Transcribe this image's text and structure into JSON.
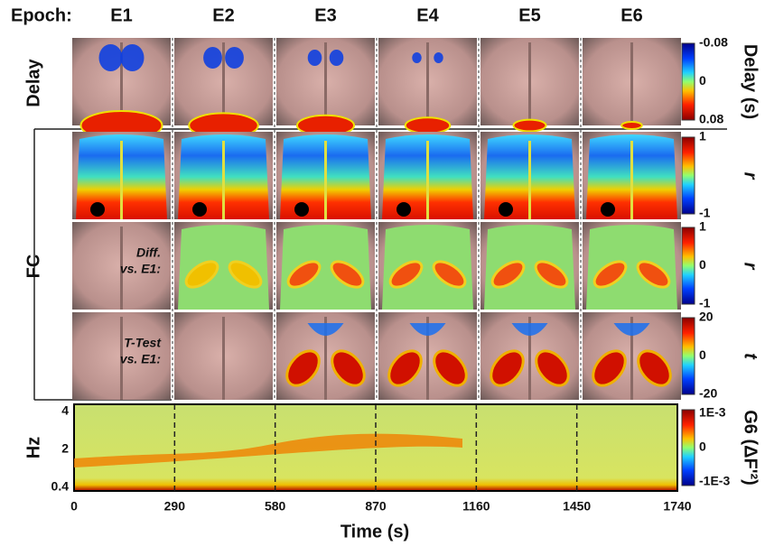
{
  "header": {
    "epoch_label": "Epoch:",
    "epochs": [
      "E1",
      "E2",
      "E3",
      "E4",
      "E5",
      "E6"
    ]
  },
  "delay_row": {
    "label": "Delay",
    "colorbar_ticks": [
      -0.08,
      0,
      0.08
    ],
    "colorbar_label": "Delay (s)"
  },
  "fc": {
    "label": "FC",
    "map_row": {
      "colorbar_ticks": [
        1,
        -1
      ],
      "colorbar_label": "r"
    },
    "diff_row": {
      "annotation": [
        "Diff.",
        "vs. E1:"
      ],
      "colorbar_ticks": [
        1,
        0,
        -1
      ],
      "colorbar_label": "r"
    },
    "ttest_row": {
      "annotation": [
        "T-Test",
        "vs. E1:"
      ],
      "colorbar_ticks": [
        20,
        0,
        -20
      ],
      "colorbar_label": "t"
    }
  },
  "spectrogram": {
    "y_label": "Hz",
    "y_ticks": [
      4,
      2,
      0.4
    ],
    "x_ticks": [
      0,
      290,
      580,
      870,
      1160,
      1450,
      1740
    ],
    "x_label": "Time (s)",
    "colorbar_ticks": [
      "1E-3",
      0,
      "-1E-3"
    ],
    "colorbar_label": "G6 (ΔF'²)"
  }
}
